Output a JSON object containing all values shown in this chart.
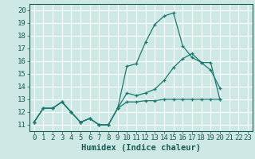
{
  "xlabel": "Humidex (Indice chaleur)",
  "bg_color": "#cde8e5",
  "grid_color": "#ffffff",
  "line_color": "#1a7a6e",
  "xlim": [
    -0.5,
    23.5
  ],
  "ylim": [
    10.5,
    20.5
  ],
  "xticks": [
    0,
    1,
    2,
    3,
    4,
    5,
    6,
    7,
    8,
    9,
    10,
    11,
    12,
    13,
    14,
    15,
    16,
    17,
    18,
    19,
    20,
    21,
    22,
    23
  ],
  "yticks": [
    11,
    12,
    13,
    14,
    15,
    16,
    17,
    18,
    19,
    20
  ],
  "line1_y": [
    11.2,
    12.3,
    12.3,
    12.8,
    12.0,
    11.2,
    11.5,
    11.0,
    11.0,
    12.3,
    15.6,
    15.8,
    17.5,
    18.9,
    19.55,
    19.8,
    17.2,
    16.3,
    15.9,
    15.3,
    13.9,
    null,
    null,
    null
  ],
  "line2_y": [
    11.2,
    12.3,
    12.3,
    12.8,
    12.0,
    11.2,
    11.5,
    11.0,
    11.0,
    12.3,
    13.5,
    13.3,
    13.5,
    13.8,
    14.5,
    15.5,
    16.2,
    16.6,
    15.9,
    15.9,
    13.0,
    null,
    null,
    null
  ],
  "line3_y": [
    11.2,
    12.3,
    12.3,
    12.8,
    12.0,
    11.2,
    11.5,
    11.0,
    11.0,
    12.3,
    12.8,
    12.8,
    12.9,
    12.9,
    13.0,
    13.0,
    13.0,
    13.0,
    13.0,
    13.0,
    13.0,
    null,
    null,
    null
  ],
  "font_color": "#1a5c52",
  "tick_fontsize": 6.5,
  "label_fontsize": 7.5
}
